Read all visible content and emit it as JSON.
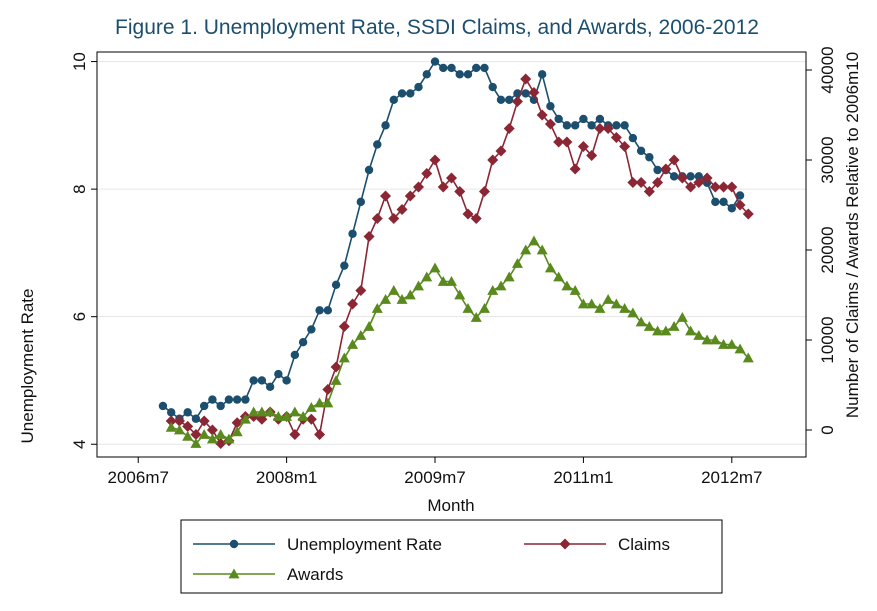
{
  "chart_data": {
    "type": "line",
    "title": "Figure 1. Unemployment Rate, SSDI Claims, and Awards, 2006-2012",
    "xlabel": "Month",
    "ylabel_left": "Unemployment Rate",
    "ylabel_right": "Number of Claims / Awards Relative to 2006m10",
    "x_ticks": [
      {
        "label": "2006m7",
        "t": 0
      },
      {
        "label": "2008m1",
        "t": 18
      },
      {
        "label": "2009m7",
        "t": 36
      },
      {
        "label": "2011m1",
        "t": 54
      },
      {
        "label": "2012m7",
        "t": 72
      }
    ],
    "y_left_ticks": [
      4,
      6,
      8,
      10
    ],
    "y_left_lim": [
      3.8,
      10.15
    ],
    "y_right_ticks": [
      0,
      10000,
      20000,
      30000,
      40000
    ],
    "y_right_tick_labels": [
      "0",
      "10000",
      "20000",
      "30000",
      "40000"
    ],
    "y_right_lim": [
      -3000,
      42000
    ],
    "x_lim": [
      -5,
      81
    ],
    "grid": true,
    "legend_position": "bottom",
    "x_start_month": 3,
    "series": [
      {
        "name": "Unemployment Rate",
        "axis": "left",
        "color": "#1c4e6e",
        "marker": "circle",
        "values": [
          4.6,
          4.5,
          4.4,
          4.5,
          4.4,
          4.6,
          4.7,
          4.6,
          4.7,
          4.7,
          4.7,
          5.0,
          5.0,
          4.9,
          5.1,
          5.0,
          5.4,
          5.6,
          5.8,
          6.1,
          6.1,
          6.5,
          6.8,
          7.3,
          7.8,
          8.3,
          8.7,
          9.0,
          9.4,
          9.5,
          9.5,
          9.6,
          9.8,
          10.0,
          9.9,
          9.9,
          9.8,
          9.8,
          9.9,
          9.9,
          9.6,
          9.4,
          9.4,
          9.5,
          9.5,
          9.4,
          9.8,
          9.3,
          9.1,
          9.0,
          9.0,
          9.1,
          9.0,
          9.1,
          9.0,
          9.0,
          9.0,
          8.8,
          8.6,
          8.5,
          8.3,
          8.3,
          8.2,
          8.2,
          8.2,
          8.2,
          8.1,
          7.8,
          7.8,
          7.7,
          7.9
        ]
      },
      {
        "name": "Claims",
        "axis": "right",
        "color": "#8b2635",
        "marker": "diamond",
        "start": 1,
        "values": [
          1000,
          1000,
          400,
          -500,
          1000,
          0,
          -1500,
          -1200,
          800,
          1500,
          1500,
          1200,
          2000,
          1200,
          1500,
          -500,
          1200,
          1200,
          -500,
          4500,
          7000,
          11500,
          14000,
          15500,
          21500,
          23500,
          26000,
          23500,
          24500,
          26000,
          27000,
          28500,
          30000,
          27000,
          28000,
          26500,
          24000,
          23500,
          26500,
          30000,
          31000,
          33500,
          36500,
          39000,
          37500,
          35000,
          34000,
          32000,
          32000,
          29000,
          31500,
          30500,
          33500,
          33500,
          32500,
          31500,
          27500,
          27500,
          26500,
          27500,
          29000,
          30000,
          28000,
          27000,
          27500,
          28000,
          27000,
          27000,
          27000,
          25000,
          24000
        ]
      },
      {
        "name": "Awards",
        "axis": "right",
        "color": "#5a8a1e",
        "marker": "triangle",
        "start": 1,
        "values": [
          300,
          0,
          -700,
          -1500,
          -500,
          -1000,
          -500,
          -1000,
          -200,
          1200,
          2000,
          2000,
          2000,
          1500,
          1500,
          2000,
          1500,
          2500,
          3000,
          3000,
          5500,
          8000,
          9500,
          10500,
          11500,
          13500,
          14500,
          15500,
          14500,
          15000,
          16000,
          17000,
          18000,
          16500,
          16500,
          15000,
          13500,
          12500,
          13500,
          15500,
          16000,
          17000,
          18500,
          20000,
          21000,
          20000,
          18000,
          17000,
          16000,
          15500,
          14000,
          14000,
          13500,
          14500,
          14000,
          13500,
          13000,
          12000,
          11500,
          11000,
          11000,
          11500,
          12500,
          11000,
          10500,
          10000,
          10000,
          9500,
          9500,
          9000,
          8000
        ]
      }
    ]
  }
}
